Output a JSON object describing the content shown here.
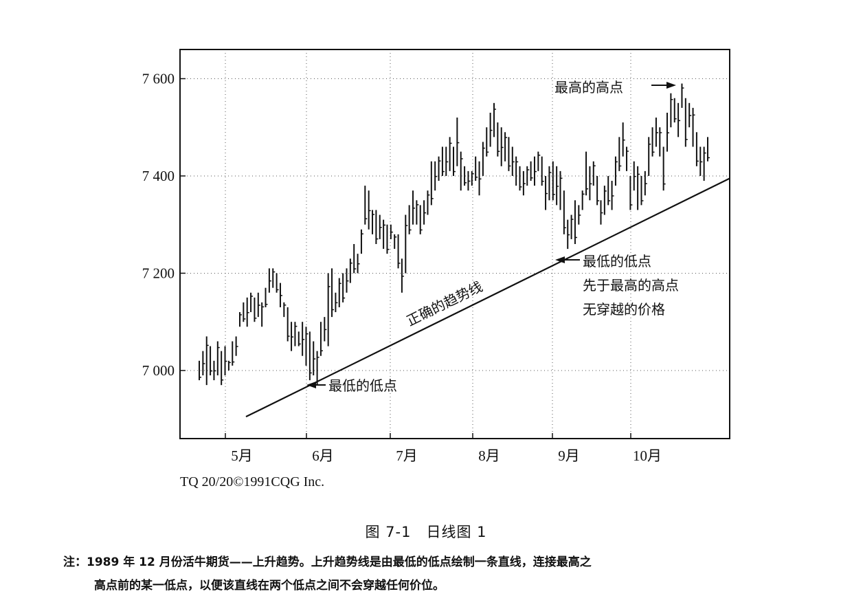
{
  "chart_data": {
    "type": "bar",
    "subtype": "ohlc",
    "y_ticks": [
      "7 000",
      "7 200",
      "7 400",
      "7 600"
    ],
    "y_tick_values": [
      7000,
      7200,
      7400,
      7600
    ],
    "ylim": [
      6860,
      7660
    ],
    "x_ticks": [
      "5月",
      "6月",
      "7月",
      "8月",
      "9月",
      "10月"
    ],
    "grid": true,
    "trendline": {
      "label": "正确的趋势线",
      "x_start": 0.12,
      "y_start": 6905,
      "x_end": 1.0,
      "y_end": 7395
    },
    "annotations": {
      "highest_high": "最高的高点",
      "lowest_low": "最低的低点",
      "low_before_high_1": "最低的低点",
      "low_before_high_2": "先于最高的高点",
      "low_before_high_3": "无穿越的价格"
    },
    "bars": [
      [
        6980,
        7020
      ],
      [
        6990,
        7040
      ],
      [
        6970,
        7070
      ],
      [
        6990,
        7050
      ],
      [
        6980,
        7020
      ],
      [
        6990,
        7060
      ],
      [
        6970,
        7040
      ],
      [
        6990,
        7050
      ],
      [
        7000,
        7020
      ],
      [
        7010,
        7060
      ],
      [
        7030,
        7070
      ],
      [
        7090,
        7120
      ],
      [
        7100,
        7140
      ],
      [
        7090,
        7150
      ],
      [
        7120,
        7160
      ],
      [
        7100,
        7150
      ],
      [
        7110,
        7160
      ],
      [
        7090,
        7140
      ],
      [
        7130,
        7170
      ],
      [
        7160,
        7210
      ],
      [
        7170,
        7210
      ],
      [
        7160,
        7200
      ],
      [
        7130,
        7180
      ],
      [
        7110,
        7140
      ],
      [
        7060,
        7130
      ],
      [
        7040,
        7100
      ],
      [
        7050,
        7100
      ],
      [
        7050,
        7080
      ],
      [
        7030,
        7100
      ],
      [
        7010,
        7090
      ],
      [
        6980,
        7080
      ],
      [
        6990,
        7060
      ],
      [
        6970,
        7040
      ],
      [
        7030,
        7100
      ],
      [
        7060,
        7110
      ],
      [
        7050,
        7200
      ],
      [
        7110,
        7210
      ],
      [
        7120,
        7160
      ],
      [
        7130,
        7190
      ],
      [
        7140,
        7200
      ],
      [
        7160,
        7210
      ],
      [
        7180,
        7230
      ],
      [
        7200,
        7260
      ],
      [
        7200,
        7240
      ],
      [
        7240,
        7290
      ],
      [
        7300,
        7380
      ],
      [
        7290,
        7370
      ],
      [
        7280,
        7330
      ],
      [
        7260,
        7330
      ],
      [
        7270,
        7320
      ],
      [
        7250,
        7310
      ],
      [
        7240,
        7300
      ],
      [
        7270,
        7300
      ],
      [
        7250,
        7280
      ],
      [
        7210,
        7280
      ],
      [
        7160,
        7230
      ],
      [
        7200,
        7320
      ],
      [
        7280,
        7340
      ],
      [
        7300,
        7370
      ],
      [
        7300,
        7350
      ],
      [
        7280,
        7340
      ],
      [
        7300,
        7350
      ],
      [
        7320,
        7370
      ],
      [
        7340,
        7430
      ],
      [
        7370,
        7430
      ],
      [
        7390,
        7440
      ],
      [
        7400,
        7460
      ],
      [
        7400,
        7460
      ],
      [
        7410,
        7480
      ],
      [
        7400,
        7460
      ],
      [
        7420,
        7520
      ],
      [
        7370,
        7450
      ],
      [
        7380,
        7420
      ],
      [
        7370,
        7410
      ],
      [
        7380,
        7410
      ],
      [
        7390,
        7440
      ],
      [
        7360,
        7430
      ],
      [
        7400,
        7470
      ],
      [
        7440,
        7500
      ],
      [
        7460,
        7530
      ],
      [
        7480,
        7550
      ],
      [
        7440,
        7510
      ],
      [
        7420,
        7500
      ],
      [
        7430,
        7490
      ],
      [
        7410,
        7480
      ],
      [
        7400,
        7460
      ],
      [
        7380,
        7440
      ],
      [
        7370,
        7420
      ],
      [
        7360,
        7410
      ],
      [
        7380,
        7420
      ],
      [
        7390,
        7430
      ],
      [
        7380,
        7440
      ],
      [
        7410,
        7450
      ],
      [
        7380,
        7440
      ],
      [
        7330,
        7400
      ],
      [
        7350,
        7420
      ],
      [
        7350,
        7430
      ],
      [
        7340,
        7420
      ],
      [
        7330,
        7410
      ],
      [
        7280,
        7370
      ],
      [
        7250,
        7310
      ],
      [
        7270,
        7320
      ],
      [
        7260,
        7350
      ],
      [
        7300,
        7340
      ],
      [
        7330,
        7370
      ],
      [
        7360,
        7450
      ],
      [
        7350,
        7420
      ],
      [
        7380,
        7430
      ],
      [
        7340,
        7400
      ],
      [
        7300,
        7350
      ],
      [
        7320,
        7380
      ],
      [
        7340,
        7400
      ],
      [
        7330,
        7390
      ],
      [
        7380,
        7440
      ],
      [
        7410,
        7480
      ],
      [
        7440,
        7510
      ],
      [
        7410,
        7460
      ],
      [
        7330,
        7400
      ],
      [
        7370,
        7430
      ],
      [
        7330,
        7420
      ],
      [
        7340,
        7400
      ],
      [
        7360,
        7410
      ],
      [
        7400,
        7480
      ],
      [
        7440,
        7500
      ],
      [
        7460,
        7520
      ],
      [
        7440,
        7500
      ],
      [
        7370,
        7460
      ],
      [
        7450,
        7530
      ],
      [
        7500,
        7570
      ],
      [
        7510,
        7560
      ],
      [
        7480,
        7550
      ],
      [
        7540,
        7590
      ],
      [
        7460,
        7560
      ],
      [
        7500,
        7550
      ],
      [
        7460,
        7540
      ],
      [
        7420,
        7490
      ],
      [
        7400,
        7460
      ],
      [
        7390,
        7460
      ],
      [
        7430,
        7480
      ]
    ]
  },
  "footer": {
    "copyright": "TQ 20/20©1991CQG Inc.",
    "figure_title": "图 7-1　日线图 1",
    "note_line1": "注：1989 年 12 月份活牛期货——上升趋势。上升趋势线是由最低的低点绘制一条直线，连接最高之",
    "note_line2": "高点前的某一低点，以便该直线在两个低点之间不会穿越任何价位。"
  }
}
